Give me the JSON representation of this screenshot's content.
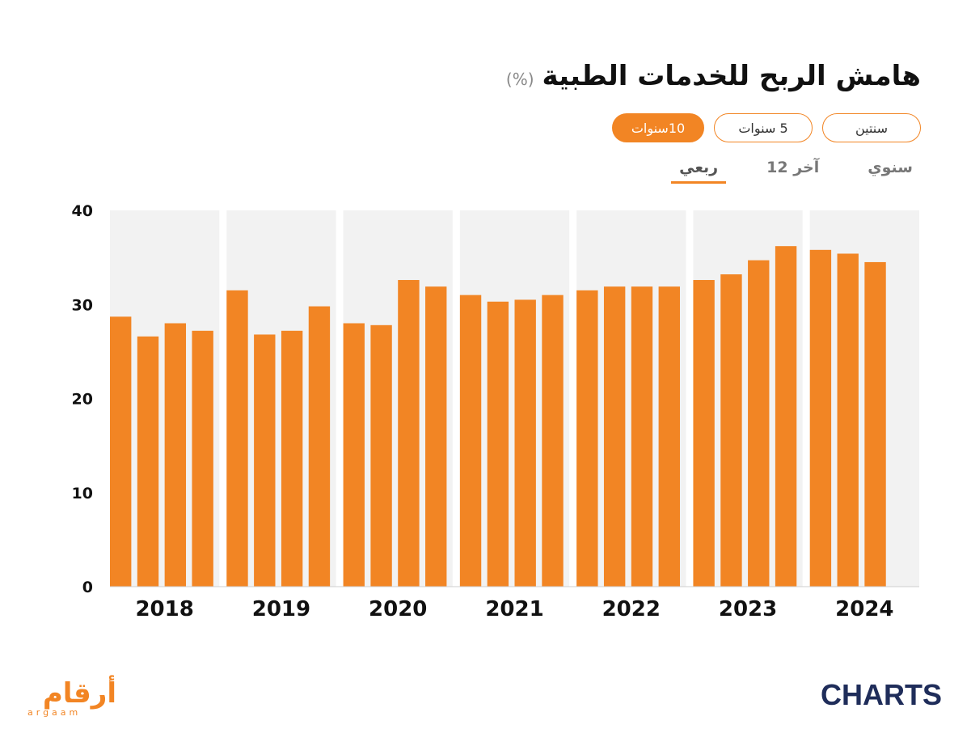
{
  "header": {
    "title": "هامش الربح للخدمات الطبية",
    "unit": "(%)"
  },
  "range_tabs": [
    {
      "label": "سنتين",
      "active": false
    },
    {
      "label": "5 سنوات",
      "active": false
    },
    {
      "label": "10سنوات",
      "active": true
    }
  ],
  "frequency_tabs": [
    {
      "label": "سنوي",
      "active": false
    },
    {
      "label": "آخر 12",
      "active": false
    },
    {
      "label": "ربعي",
      "active": true
    }
  ],
  "logos": {
    "left_arabic": "أرقام",
    "left_latin": "argaam",
    "right": "CHARTS"
  },
  "colors": {
    "bar": "#f28524",
    "band": "#f2f2f2",
    "brand_navy": "#1f2d5a"
  },
  "chart_data": {
    "type": "bar",
    "title": "هامش الربح للخدمات الطبية",
    "ylabel": "",
    "xlabel": "",
    "ylim": [
      0,
      40
    ],
    "yticks": [
      0,
      10,
      20,
      30,
      40
    ],
    "groups": [
      {
        "year": "2018",
        "values": [
          28.7,
          26.6,
          28.0,
          27.2
        ]
      },
      {
        "year": "2019",
        "values": [
          31.5,
          26.8,
          27.2,
          29.8
        ]
      },
      {
        "year": "2020",
        "values": [
          28.0,
          27.8,
          32.6,
          31.9
        ]
      },
      {
        "year": "2021",
        "values": [
          31.0,
          30.3,
          30.5,
          31.0
        ]
      },
      {
        "year": "2022",
        "values": [
          31.5,
          31.9,
          31.9,
          31.9
        ]
      },
      {
        "year": "2023",
        "values": [
          32.6,
          33.2,
          34.7,
          36.2
        ]
      },
      {
        "year": "2024",
        "values": [
          35.8,
          35.4,
          34.5
        ]
      }
    ],
    "grid": false,
    "legend": "none"
  }
}
